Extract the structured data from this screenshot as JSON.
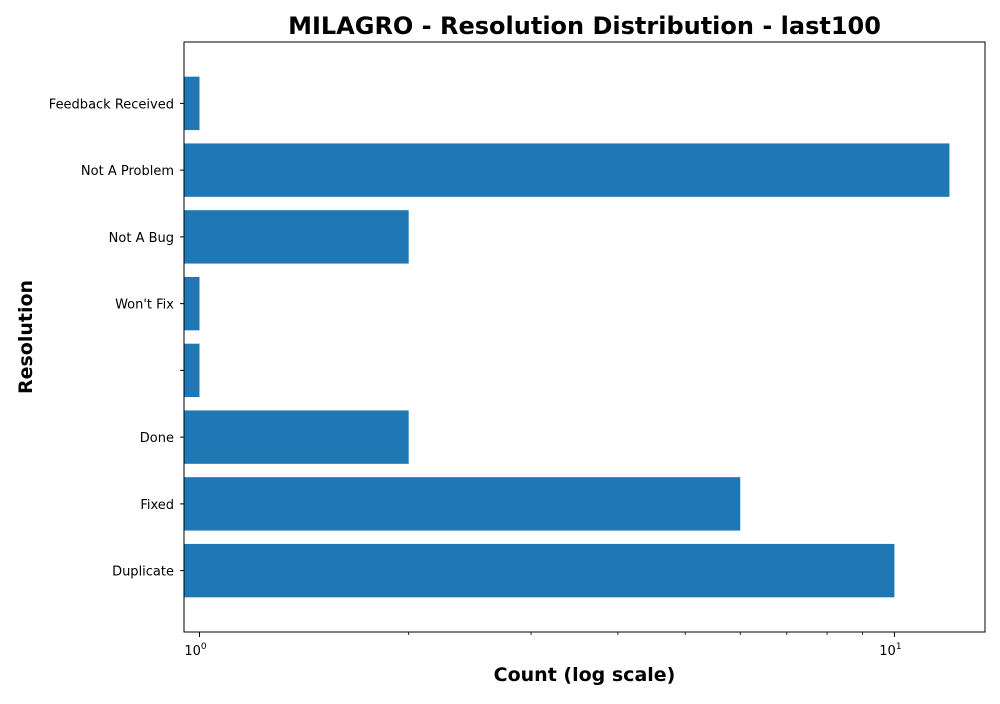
{
  "chart_data": {
    "type": "bar",
    "orientation": "horizontal",
    "title": "MILAGRO - Resolution Distribution - last100",
    "xlabel": "Count (log scale)",
    "ylabel": "Resolution",
    "xscale": "log",
    "xlim": [
      0.95,
      13.5
    ],
    "categories": [
      "Duplicate",
      "Fixed",
      "Done",
      "",
      "Won't Fix",
      "Not A Bug",
      "Not A Problem",
      "Feedback Received"
    ],
    "values": [
      10,
      6,
      2,
      1,
      1,
      2,
      12,
      1
    ],
    "bar_color": "#1f77b4",
    "x_ticks": [
      {
        "base": "10",
        "exp": "0",
        "value": 1
      },
      {
        "base": "10",
        "exp": "1",
        "value": 10
      }
    ],
    "grid": false
  }
}
